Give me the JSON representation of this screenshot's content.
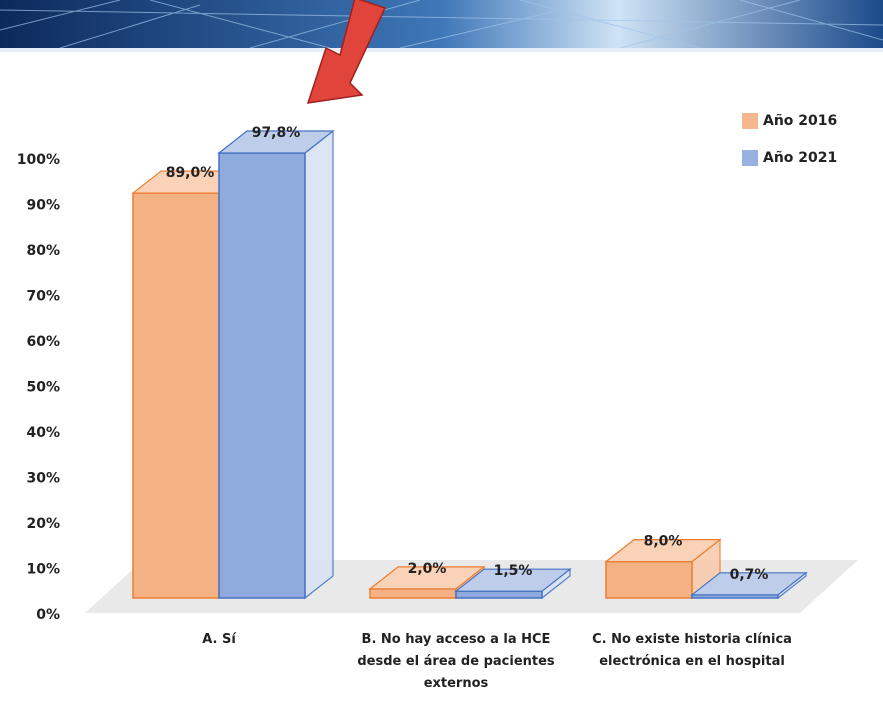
{
  "chart_data": {
    "type": "bar3d",
    "categories": [
      "A. Sí",
      "B. No hay acceso a la HCE desde el área de pacientes externos",
      "C. No existe historia clínica electrónica en el hospital"
    ],
    "series": [
      {
        "name": "Año 2016",
        "color": "#ed7d31",
        "values": [
          89.0,
          2.0,
          8.0
        ],
        "value_labels": [
          "89,0%",
          "2,0%",
          "8,0%"
        ]
      },
      {
        "name": "Año 2021",
        "color": "#4472c4",
        "values": [
          97.8,
          1.5,
          0.7
        ],
        "value_labels": [
          "97,8%",
          "1,5%",
          "0,7%"
        ]
      }
    ],
    "ylim": [
      0,
      100
    ],
    "yticks": [
      {
        "value": 0,
        "label": "0%"
      },
      {
        "value": 10,
        "label": "10%"
      },
      {
        "value": 20,
        "label": "20%"
      },
      {
        "value": 30,
        "label": "30%"
      },
      {
        "value": 40,
        "label": "40%"
      },
      {
        "value": 50,
        "label": "50%"
      },
      {
        "value": 60,
        "label": "60%"
      },
      {
        "value": 70,
        "label": "70%"
      },
      {
        "value": 80,
        "label": "80%"
      },
      {
        "value": 90,
        "label": "90%"
      },
      {
        "value": 100,
        "label": "100%"
      }
    ],
    "legend": "top-right"
  }
}
